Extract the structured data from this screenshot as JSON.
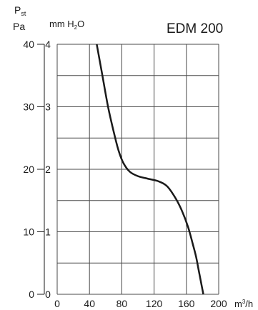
{
  "chart_data": {
    "type": "line",
    "title": "EDM 200",
    "y_left_label_main": "P",
    "y_left_label_sub": "st",
    "y_left_unit": "Pa",
    "y_right_label_prefix": "mm H",
    "y_right_label_sub": "2",
    "y_right_label_suffix": "O",
    "x_unit_base": "m",
    "x_unit_sup": "3",
    "x_unit_suffix": "/h",
    "xlim": [
      0,
      200
    ],
    "ylim": [
      0,
      40
    ],
    "x_ticks": [
      "0",
      "40",
      "80",
      "120",
      "160",
      "200"
    ],
    "x_tick_values": [
      0,
      40,
      80,
      120,
      160,
      200
    ],
    "y_pa_ticks": [
      "0",
      "10",
      "20",
      "30",
      "40"
    ],
    "y_pa_tick_values": [
      0,
      10,
      20,
      30,
      40
    ],
    "y_mm_ticks": [
      "0",
      "1",
      "2",
      "3",
      "4"
    ],
    "y_mm_tick_values": [
      0,
      10,
      20,
      30,
      40
    ],
    "x_grid": [
      0,
      40,
      80,
      120,
      160,
      200
    ],
    "y_grid": [
      0,
      5,
      10,
      15,
      20,
      25,
      30,
      35,
      40
    ],
    "grid": true,
    "series": [
      {
        "color": "#1a1a1a",
        "x": [
          49,
          56,
          63,
          70,
          76,
          82,
          90,
          100,
          112,
          125,
          136,
          146,
          154,
          162,
          168,
          172,
          175,
          178,
          181
        ],
        "y": [
          40,
          35,
          30,
          26,
          23,
          21,
          19.6,
          18.9,
          18.5,
          18.1,
          17.3,
          15.5,
          13.5,
          10.8,
          8,
          6,
          4,
          2,
          0
        ]
      }
    ]
  }
}
